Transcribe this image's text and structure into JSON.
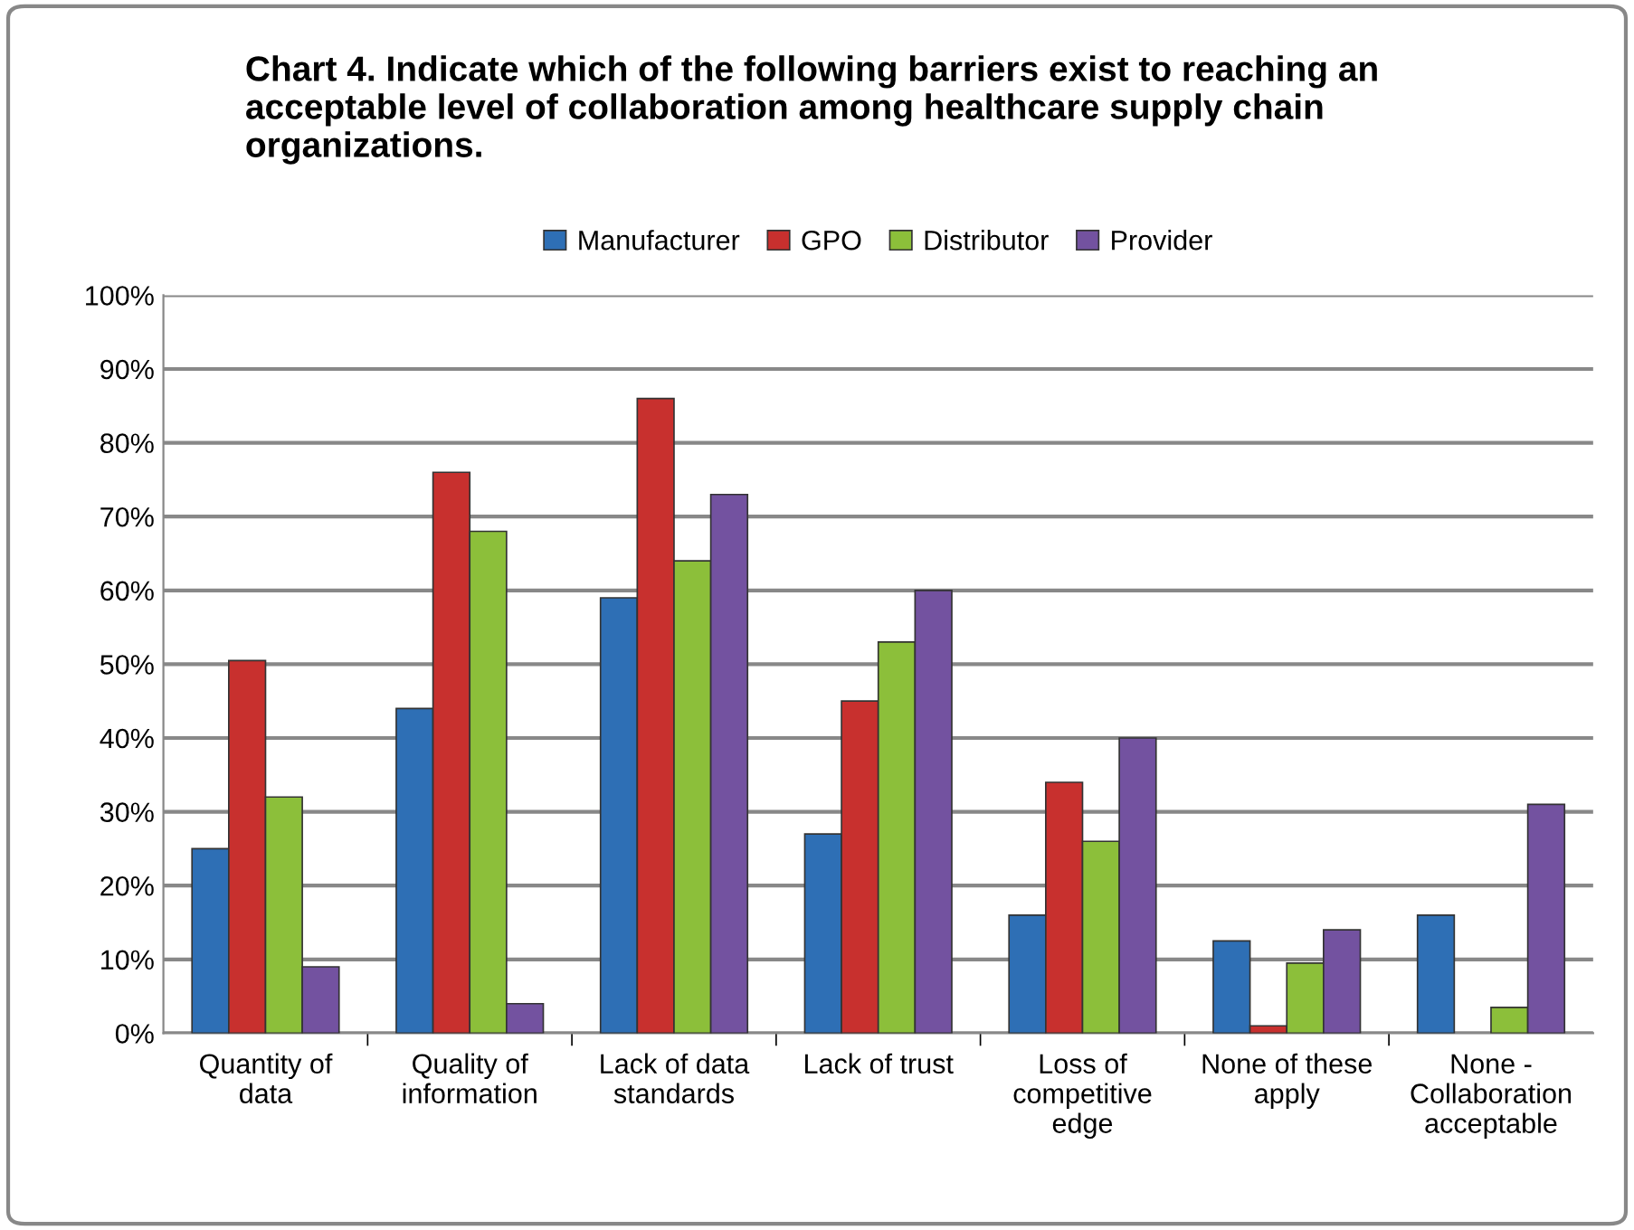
{
  "chart_data": {
    "type": "bar",
    "title": "Chart 4. Indicate which of the following barriers exist to reaching an acceptable level of collaboration among healthcare supply chain organizations.",
    "categories": [
      "Quantity of\ndata",
      "Quality of\ninformation",
      "Lack of data\nstandards",
      "Lack of trust",
      "Loss of\ncompetitive\nedge",
      "None of these\napply",
      "None -\nCollaboration\nacceptable"
    ],
    "series": [
      {
        "name": "Manufacturer",
        "color": "#2e6fb5",
        "values": [
          25,
          44,
          59,
          27,
          16,
          12.5,
          16
        ]
      },
      {
        "name": "GPO",
        "color": "#c8302e",
        "values": [
          50.5,
          76,
          86,
          45,
          34,
          1,
          null
        ]
      },
      {
        "name": "Distributor",
        "color": "#8cbf3a",
        "values": [
          32,
          68,
          64,
          53,
          26,
          9.5,
          3.5
        ]
      },
      {
        "name": "Provider",
        "color": "#7352a0",
        "values": [
          9,
          4,
          73,
          60,
          40,
          14,
          31
        ]
      }
    ],
    "ylim": [
      0,
      100
    ],
    "yticks": [
      {
        "value": 0,
        "label": "0%"
      },
      {
        "value": 10,
        "label": "10%"
      },
      {
        "value": 20,
        "label": "20%"
      },
      {
        "value": 30,
        "label": "30%"
      },
      {
        "value": 40,
        "label": "40%"
      },
      {
        "value": 50,
        "label": "50%"
      },
      {
        "value": 60,
        "label": "60%"
      },
      {
        "value": 70,
        "label": "70%"
      },
      {
        "value": 80,
        "label": "80%"
      },
      {
        "value": 90,
        "label": "90%"
      },
      {
        "value": 100,
        "label": "100%"
      }
    ],
    "grid": "y",
    "legend": "top"
  }
}
